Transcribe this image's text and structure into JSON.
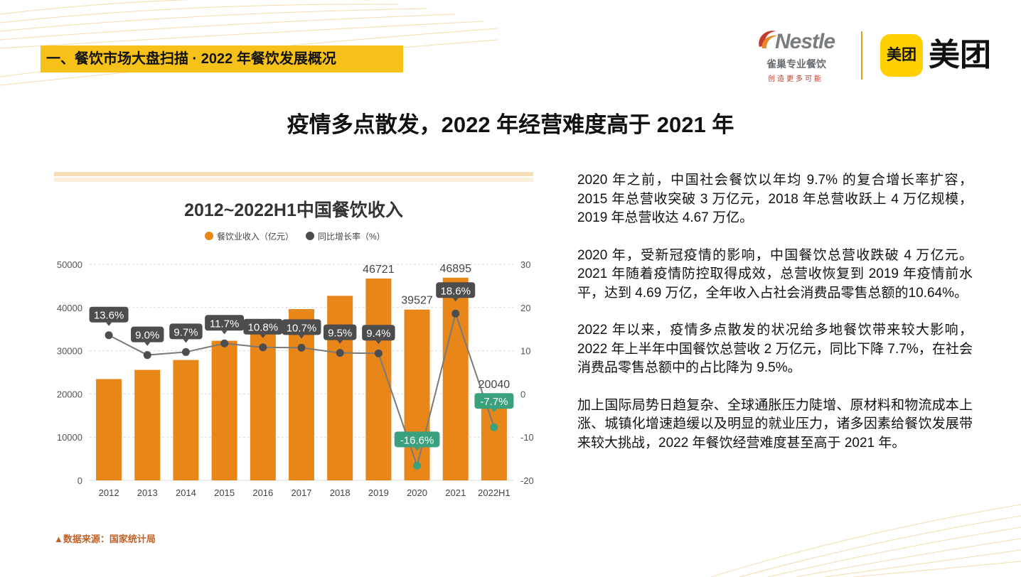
{
  "section_tag": "一、餐饮市场大盘扫描 · 2022 年餐饮发展概况",
  "logos": {
    "nestle_word": "Nestle",
    "nestle_cn": "雀巢专业餐饮",
    "nestle_slogan": "创造更多可能",
    "meituan_badge": "美团",
    "meituan_word": "美团"
  },
  "main_title": "疫情多点散发，2022 年经营难度高于 2021 年",
  "paragraphs": [
    "2020 年之前，中国社会餐饮以年均 9.7% 的复合增长率扩容，2015 年总营收突破 3 万亿元，2018 年总营收跃上 4 万亿规模，2019 年总营收达 4.67 万亿。",
    "2020 年，受新冠疫情的影响，中国餐饮总营收跌破 4 万亿元。2021 年随着疫情防控取得成效，总营收恢复到 2019 年疫情前水平，达到 4.69 万亿，全年收入占社会消费品零售总额的10.64%。",
    "2022 年以来，疫情多点散发的状况给多地餐饮带来较大影响，2022 年上半年中国餐饮总营收 2 万亿元，同比下降 7.7%，在社会消费品零售总额中的占比降为 9.5%。",
    "加上国际局势日趋复杂、全球通胀压力陡增、原材料和物流成本上涨、城镇化增速趋缓以及明显的就业压力，诸多因素给餐饮发展带来较大挑战，2022 年餐饮经营难度甚至高于 2021 年。"
  ],
  "source": "▲数据来源：国家统计局",
  "colors": {
    "accent_yellow": "#f6c21a",
    "bar": "#e8861a",
    "line": "#7a7a7a",
    "label_dark": "#4d4d4d",
    "label_negative": "#3aa17e"
  },
  "chart_data": {
    "type": "bar",
    "title": "2012~2022H1中国餐饮收入",
    "categories": [
      "2012",
      "2013",
      "2014",
      "2015",
      "2016",
      "2017",
      "2018",
      "2019",
      "2020",
      "2021",
      "2022H1"
    ],
    "series": [
      {
        "name": "餐饮业收入（亿元）",
        "type": "bar",
        "axis": "left",
        "values": [
          23448,
          25569,
          27860,
          32310,
          35799,
          39644,
          42716,
          46721,
          39527,
          46895,
          20040
        ],
        "labeled_values": [
          "",
          "",
          "",
          "",
          "",
          "",
          "",
          "46721",
          "39527",
          "46895",
          "20040"
        ]
      },
      {
        "name": "同比增长率（%）",
        "type": "line",
        "axis": "right",
        "values": [
          13.6,
          9.0,
          9.7,
          11.7,
          10.8,
          10.7,
          9.5,
          9.4,
          -16.6,
          18.6,
          -7.7
        ],
        "labels": [
          "13.6%",
          "9.0%",
          "9.7%",
          "11.7%",
          "10.8%",
          "10.7%",
          "9.5%",
          "9.4%",
          "-16.6%",
          "18.6%",
          "-7.7%"
        ]
      }
    ],
    "ylim_left": [
      0,
      50000
    ],
    "yticks_left": [
      "0",
      "10000",
      "20000",
      "30000",
      "40000",
      "50000"
    ],
    "ylim_right": [
      -20,
      30
    ],
    "yticks_right": [
      "-20",
      "-10",
      "0",
      "10",
      "20",
      "30"
    ],
    "grid": true,
    "legend_position": "top"
  }
}
